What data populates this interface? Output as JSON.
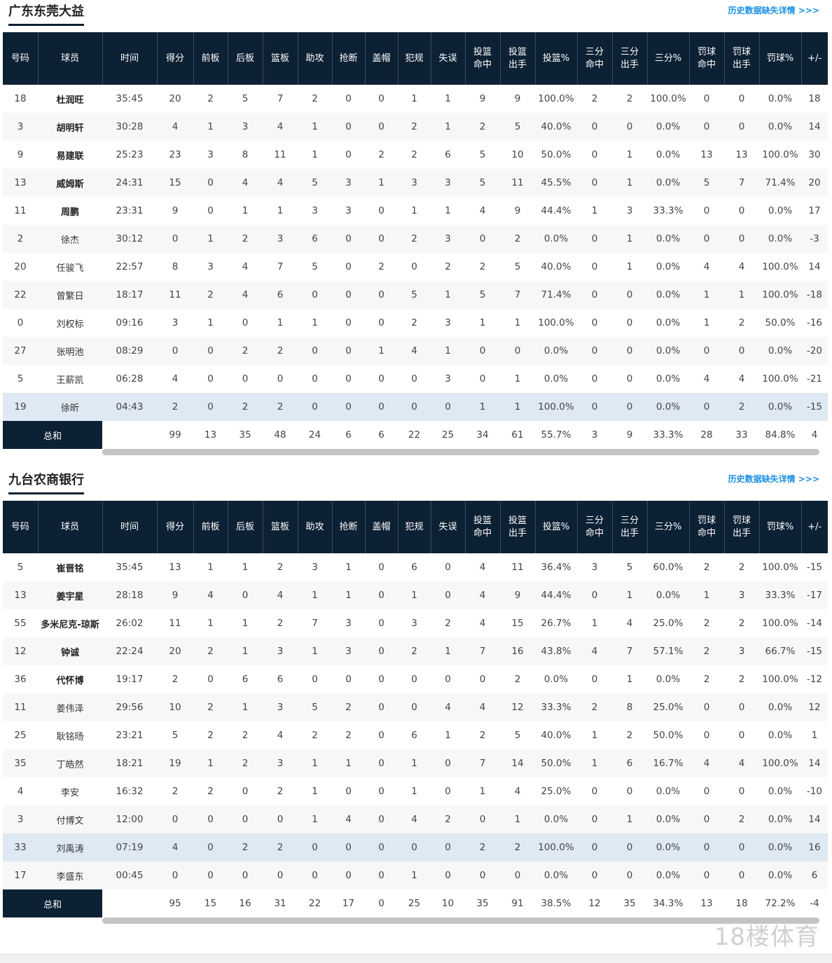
{
  "history_link": "历史数据缺失详情 >>>",
  "columns": [
    "号码",
    "球员",
    "时间",
    "得分",
    "前板",
    "后板",
    "篮板",
    "助攻",
    "抢断",
    "盖帽",
    "犯规",
    "失误",
    "投篮\n命中",
    "投篮\n出手",
    "投篮%",
    "三分\n命中",
    "三分\n出手",
    "三分%",
    "罚球\n命中",
    "罚球\n出手",
    "罚球%",
    "+/-"
  ],
  "total_label": "总和",
  "watermark": "18楼体育",
  "teams": [
    {
      "name": "广东东莞大益",
      "players": [
        {
          "no": "18",
          "name": "杜润旺",
          "starter": true,
          "stats": [
            "35:45",
            "20",
            "2",
            "5",
            "7",
            "2",
            "0",
            "0",
            "1",
            "1",
            "9",
            "9",
            "100.0%",
            "2",
            "2",
            "100.0%",
            "0",
            "0",
            "0.0%",
            "18"
          ]
        },
        {
          "no": "3",
          "name": "胡明轩",
          "starter": true,
          "stats": [
            "30:28",
            "4",
            "1",
            "3",
            "4",
            "1",
            "0",
            "0",
            "2",
            "1",
            "2",
            "5",
            "40.0%",
            "0",
            "0",
            "0.0%",
            "0",
            "0",
            "0.0%",
            "14"
          ]
        },
        {
          "no": "9",
          "name": "易建联",
          "starter": true,
          "stats": [
            "25:23",
            "23",
            "3",
            "8",
            "11",
            "1",
            "0",
            "2",
            "2",
            "6",
            "5",
            "10",
            "50.0%",
            "0",
            "1",
            "0.0%",
            "13",
            "13",
            "100.0%",
            "30"
          ]
        },
        {
          "no": "13",
          "name": "威姆斯",
          "starter": true,
          "stats": [
            "24:31",
            "15",
            "0",
            "4",
            "4",
            "5",
            "3",
            "1",
            "3",
            "3",
            "5",
            "11",
            "45.5%",
            "0",
            "1",
            "0.0%",
            "5",
            "7",
            "71.4%",
            "20"
          ]
        },
        {
          "no": "11",
          "name": "周鹏",
          "starter": true,
          "stats": [
            "23:31",
            "9",
            "0",
            "1",
            "1",
            "3",
            "3",
            "0",
            "1",
            "1",
            "4",
            "9",
            "44.4%",
            "1",
            "3",
            "33.3%",
            "0",
            "0",
            "0.0%",
            "17"
          ]
        },
        {
          "no": "2",
          "name": "徐杰",
          "starter": false,
          "stats": [
            "30:12",
            "0",
            "1",
            "2",
            "3",
            "6",
            "0",
            "0",
            "2",
            "3",
            "0",
            "2",
            "0.0%",
            "0",
            "1",
            "0.0%",
            "0",
            "0",
            "0.0%",
            "-3"
          ]
        },
        {
          "no": "20",
          "name": "任骏飞",
          "starter": false,
          "stats": [
            "22:57",
            "8",
            "3",
            "4",
            "7",
            "5",
            "0",
            "2",
            "0",
            "2",
            "2",
            "5",
            "40.0%",
            "0",
            "1",
            "0.0%",
            "4",
            "4",
            "100.0%",
            "14"
          ]
        },
        {
          "no": "22",
          "name": "曾繁日",
          "starter": false,
          "stats": [
            "18:17",
            "11",
            "2",
            "4",
            "6",
            "0",
            "0",
            "0",
            "5",
            "1",
            "5",
            "7",
            "71.4%",
            "0",
            "0",
            "0.0%",
            "1",
            "1",
            "100.0%",
            "-18"
          ]
        },
        {
          "no": "0",
          "name": "刘权标",
          "starter": false,
          "stats": [
            "09:16",
            "3",
            "1",
            "0",
            "1",
            "1",
            "0",
            "0",
            "2",
            "3",
            "1",
            "1",
            "100.0%",
            "0",
            "0",
            "0.0%",
            "1",
            "2",
            "50.0%",
            "-16"
          ]
        },
        {
          "no": "27",
          "name": "张明池",
          "starter": false,
          "stats": [
            "08:29",
            "0",
            "0",
            "2",
            "2",
            "0",
            "0",
            "1",
            "4",
            "1",
            "0",
            "0",
            "0.0%",
            "0",
            "0",
            "0.0%",
            "0",
            "0",
            "0.0%",
            "-20"
          ]
        },
        {
          "no": "5",
          "name": "王薪凯",
          "starter": false,
          "stats": [
            "06:28",
            "4",
            "0",
            "0",
            "0",
            "0",
            "0",
            "0",
            "0",
            "3",
            "0",
            "1",
            "0.0%",
            "0",
            "0",
            "0.0%",
            "4",
            "4",
            "100.0%",
            "-21"
          ]
        },
        {
          "no": "19",
          "name": "徐昕",
          "starter": false,
          "highlight": true,
          "stats": [
            "04:43",
            "2",
            "0",
            "2",
            "2",
            "0",
            "0",
            "0",
            "0",
            "0",
            "1",
            "1",
            "100.0%",
            "0",
            "0",
            "0.0%",
            "0",
            "2",
            "0.0%",
            "-15"
          ]
        }
      ],
      "totals": [
        "99",
        "13",
        "35",
        "48",
        "24",
        "6",
        "6",
        "22",
        "25",
        "34",
        "61",
        "55.7%",
        "3",
        "9",
        "33.3%",
        "28",
        "33",
        "84.8%",
        "4"
      ]
    },
    {
      "name": "九台农商银行",
      "players": [
        {
          "no": "5",
          "name": "崔晋铭",
          "starter": true,
          "stats": [
            "35:45",
            "13",
            "1",
            "1",
            "2",
            "3",
            "1",
            "0",
            "6",
            "0",
            "4",
            "11",
            "36.4%",
            "3",
            "5",
            "60.0%",
            "2",
            "2",
            "100.0%",
            "-15"
          ]
        },
        {
          "no": "13",
          "name": "姜宇星",
          "starter": true,
          "stats": [
            "28:18",
            "9",
            "4",
            "0",
            "4",
            "1",
            "1",
            "0",
            "1",
            "0",
            "4",
            "9",
            "44.4%",
            "0",
            "1",
            "0.0%",
            "1",
            "3",
            "33.3%",
            "-17"
          ]
        },
        {
          "no": "55",
          "name": "多米尼克-琼斯",
          "starter": true,
          "stats": [
            "26:02",
            "11",
            "1",
            "1",
            "2",
            "7",
            "3",
            "0",
            "3",
            "2",
            "4",
            "15",
            "26.7%",
            "1",
            "4",
            "25.0%",
            "2",
            "2",
            "100.0%",
            "-14"
          ]
        },
        {
          "no": "12",
          "name": "钟诚",
          "starter": true,
          "stats": [
            "22:24",
            "20",
            "2",
            "1",
            "3",
            "1",
            "3",
            "0",
            "2",
            "1",
            "7",
            "16",
            "43.8%",
            "4",
            "7",
            "57.1%",
            "2",
            "3",
            "66.7%",
            "-15"
          ]
        },
        {
          "no": "36",
          "name": "代怀博",
          "starter": true,
          "stats": [
            "19:17",
            "2",
            "0",
            "6",
            "6",
            "0",
            "0",
            "0",
            "0",
            "0",
            "0",
            "2",
            "0.0%",
            "0",
            "1",
            "0.0%",
            "2",
            "2",
            "100.0%",
            "-12"
          ]
        },
        {
          "no": "11",
          "name": "姜伟泽",
          "starter": false,
          "stats": [
            "29:56",
            "10",
            "2",
            "1",
            "3",
            "5",
            "2",
            "0",
            "0",
            "4",
            "4",
            "12",
            "33.3%",
            "2",
            "8",
            "25.0%",
            "0",
            "0",
            "0.0%",
            "12"
          ]
        },
        {
          "no": "25",
          "name": "耿铭旸",
          "starter": false,
          "stats": [
            "23:21",
            "5",
            "2",
            "2",
            "4",
            "2",
            "2",
            "0",
            "6",
            "1",
            "2",
            "5",
            "40.0%",
            "1",
            "2",
            "50.0%",
            "0",
            "0",
            "0.0%",
            "1"
          ]
        },
        {
          "no": "35",
          "name": "丁皓然",
          "starter": false,
          "stats": [
            "18:21",
            "19",
            "1",
            "2",
            "3",
            "1",
            "1",
            "0",
            "1",
            "0",
            "7",
            "14",
            "50.0%",
            "1",
            "6",
            "16.7%",
            "4",
            "4",
            "100.0%",
            "14"
          ]
        },
        {
          "no": "4",
          "name": "李安",
          "starter": false,
          "stats": [
            "16:32",
            "2",
            "2",
            "0",
            "2",
            "1",
            "0",
            "0",
            "1",
            "0",
            "1",
            "4",
            "25.0%",
            "0",
            "0",
            "0.0%",
            "0",
            "0",
            "0.0%",
            "-10"
          ]
        },
        {
          "no": "3",
          "name": "付博文",
          "starter": false,
          "stats": [
            "12:00",
            "0",
            "0",
            "0",
            "0",
            "1",
            "4",
            "0",
            "4",
            "2",
            "0",
            "1",
            "0.0%",
            "0",
            "1",
            "0.0%",
            "0",
            "2",
            "0.0%",
            "14"
          ]
        },
        {
          "no": "33",
          "name": "刘禹涛",
          "starter": false,
          "highlight": true,
          "stats": [
            "07:19",
            "4",
            "0",
            "2",
            "2",
            "0",
            "0",
            "0",
            "0",
            "0",
            "2",
            "2",
            "100.0%",
            "0",
            "0",
            "0.0%",
            "0",
            "0",
            "0.0%",
            "16"
          ]
        },
        {
          "no": "17",
          "name": "李盛东",
          "starter": false,
          "stats": [
            "00:45",
            "0",
            "0",
            "0",
            "0",
            "0",
            "0",
            "0",
            "1",
            "0",
            "0",
            "0",
            "0.0%",
            "0",
            "0",
            "0.0%",
            "0",
            "0",
            "0.0%",
            "6"
          ]
        }
      ],
      "totals": [
        "95",
        "15",
        "16",
        "31",
        "22",
        "17",
        "0",
        "25",
        "10",
        "35",
        "91",
        "38.5%",
        "12",
        "35",
        "34.3%",
        "13",
        "18",
        "72.2%",
        "-4"
      ]
    }
  ]
}
